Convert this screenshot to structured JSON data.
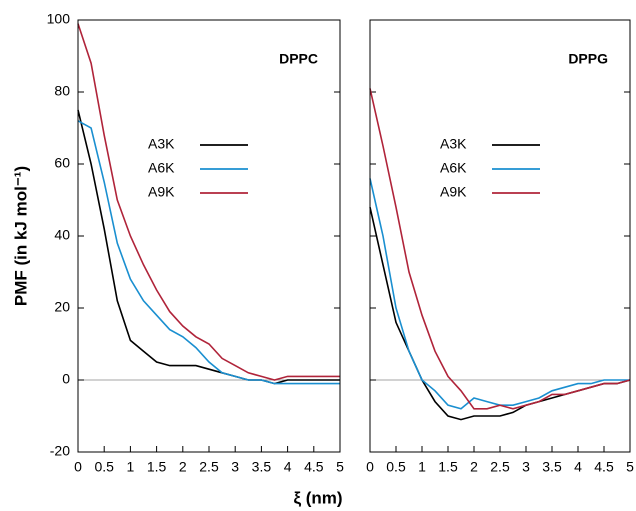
{
  "chart_data": [
    {
      "type": "line",
      "title": "DPPC",
      "y_label": "PMF (in kJ mol⁻¹)",
      "x_label": "ξ (nm)",
      "x": [
        0,
        0.25,
        0.5,
        0.75,
        1,
        1.25,
        1.5,
        1.75,
        2,
        2.25,
        2.5,
        2.75,
        3,
        3.25,
        3.5,
        3.75,
        4,
        4.25,
        4.5,
        4.75,
        5
      ],
      "series": [
        {
          "name": "A3K",
          "color": "#000000",
          "values": [
            75,
            60,
            42,
            22,
            11,
            8,
            5,
            4,
            4,
            4,
            3,
            2,
            1,
            0,
            0,
            -1,
            0,
            0,
            0,
            0,
            0
          ]
        },
        {
          "name": "A6K",
          "color": "#1a8fd0",
          "values": [
            72,
            70,
            55,
            38,
            28,
            22,
            18,
            14,
            12,
            9,
            5,
            2,
            1,
            0,
            0,
            -1,
            -1,
            -1,
            -1,
            -1,
            -1
          ]
        },
        {
          "name": "A9K",
          "color": "#b0243a",
          "values": [
            99,
            88,
            68,
            50,
            40,
            32,
            25,
            19,
            15,
            12,
            10,
            6,
            4,
            2,
            1,
            0,
            1,
            1,
            1,
            1,
            1
          ]
        }
      ],
      "xlim": [
        0,
        5
      ],
      "xticks": [
        0,
        0.5,
        1,
        1.5,
        2,
        2.5,
        3,
        3.5,
        4,
        4.5,
        5
      ],
      "ylim": [
        -20,
        100
      ],
      "yticks": [
        -20,
        0,
        20,
        40,
        60,
        80,
        100
      ],
      "hline": 0
    },
    {
      "type": "line",
      "title": "DPPG",
      "x": [
        0,
        0.25,
        0.5,
        0.75,
        1,
        1.25,
        1.5,
        1.75,
        2,
        2.25,
        2.5,
        2.75,
        3,
        3.25,
        3.5,
        3.75,
        4,
        4.25,
        4.5,
        4.75,
        5
      ],
      "series": [
        {
          "name": "A3K",
          "color": "#000000",
          "values": [
            48,
            32,
            16,
            8,
            0,
            -6,
            -10,
            -11,
            -10,
            -10,
            -10,
            -9,
            -7,
            -6,
            -5,
            -4,
            -3,
            -2,
            -1,
            -1,
            0
          ]
        },
        {
          "name": "A6K",
          "color": "#1a8fd0",
          "values": [
            56,
            40,
            20,
            8,
            0,
            -3,
            -7,
            -8,
            -5,
            -6,
            -7,
            -7,
            -6,
            -5,
            -3,
            -2,
            -1,
            -1,
            0,
            0,
            0
          ]
        },
        {
          "name": "A9K",
          "color": "#b0243a",
          "values": [
            81,
            65,
            48,
            30,
            18,
            8,
            1,
            -3,
            -8,
            -8,
            -7,
            -8,
            -7,
            -6,
            -4,
            -4,
            -3,
            -2,
            -1,
            -1,
            0
          ]
        }
      ],
      "xlim": [
        0,
        5
      ],
      "xticks": [
        0,
        0.5,
        1,
        1.5,
        2,
        2.5,
        3,
        3.5,
        4,
        4.5,
        5
      ],
      "ylim": [
        -20,
        100
      ],
      "yticks": [
        -20,
        0,
        20,
        40,
        60,
        80,
        100
      ],
      "hline": 0
    }
  ]
}
